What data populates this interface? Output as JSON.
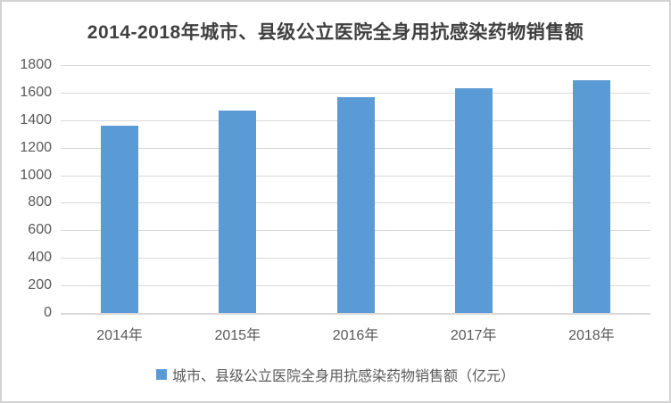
{
  "title": "2014-2018年城市、县级公立医院全身用抗感染药物销售额",
  "legend": {
    "label": "城市、县级公立医院全身用抗感染药物销售额（亿元）"
  },
  "chart_data": {
    "type": "bar",
    "title": "2014-2018年城市、县级公立医院全身用抗感染药物销售额",
    "categories": [
      "2014年",
      "2015年",
      "2016年",
      "2017年",
      "2018年"
    ],
    "values": [
      1360,
      1470,
      1570,
      1630,
      1690
    ],
    "series_name": "城市、县级公立医院全身用抗感染药物销售额（亿元）",
    "xlabel": "",
    "ylabel": "",
    "ylim": [
      0,
      1800
    ],
    "ytick_step": 200,
    "grid": true,
    "legend_position": "bottom",
    "bar_color": "#5b9bd5",
    "gridline_color": "#d9d9d9",
    "label_color": "#595959",
    "title_color": "#404040"
  }
}
